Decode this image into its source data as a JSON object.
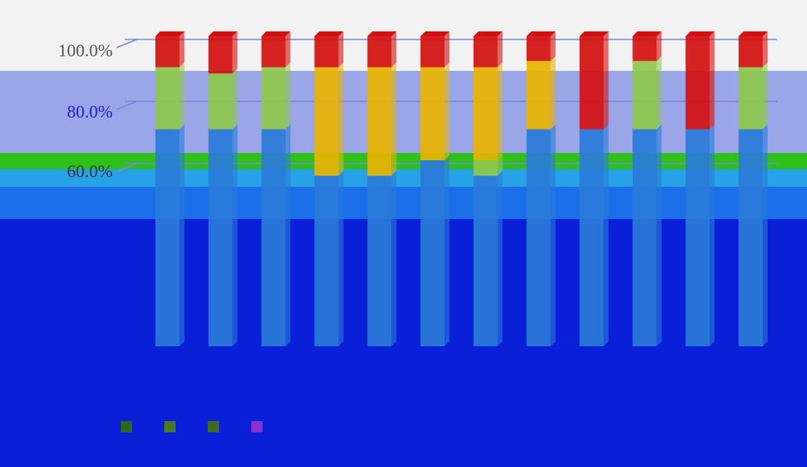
{
  "chart_data": {
    "type": "bar",
    "stacked": true,
    "three_d": true,
    "percent_axis": true,
    "y_ticks": [
      "100.0%",
      "80.0%",
      "60.0%"
    ],
    "ylim": [
      0,
      100
    ],
    "categories": [
      "",
      "",
      "",
      "",
      "",
      "",
      "",
      "",
      "",
      "",
      "",
      ""
    ],
    "series": [
      {
        "color": "#2a7bd8",
        "values": [
          70,
          70,
          70,
          55,
          55,
          60,
          55,
          70,
          70,
          70,
          70,
          70
        ]
      },
      {
        "color": "#8fc94b",
        "values": [
          20,
          18,
          20,
          0,
          0,
          0,
          5,
          0,
          0,
          22,
          0,
          20
        ]
      },
      {
        "color": "#e8b400",
        "values": [
          0,
          0,
          0,
          35,
          35,
          30,
          30,
          22,
          0,
          0,
          0,
          0
        ]
      },
      {
        "color": "#d40f0f",
        "values": [
          10,
          12,
          10,
          10,
          10,
          10,
          10,
          8,
          30,
          8,
          30,
          10
        ]
      }
    ],
    "legend_colors": [
      "#2a6a1a",
      "#4a7a20",
      "#406a20",
      "#8a30d0"
    ],
    "grid": true
  }
}
